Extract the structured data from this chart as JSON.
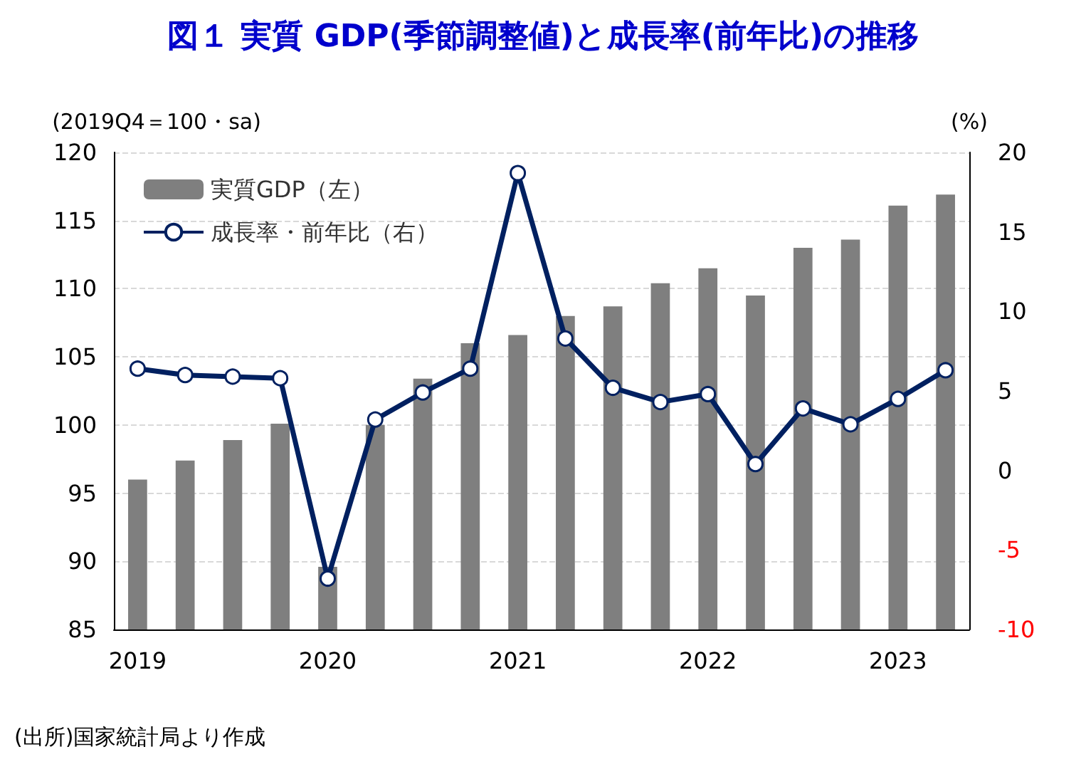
{
  "chart_data": {
    "type": "bar",
    "title": "図１ 実質 GDP(季節調整値)と成長率(前年比)の推移",
    "ylabel": "(2019Q4＝100・sa)",
    "y2label": "(%)",
    "categories": [
      "2019",
      null,
      null,
      null,
      "2020",
      null,
      null,
      null,
      "2021",
      null,
      null,
      null,
      "2022",
      null,
      null,
      null,
      "2023",
      null
    ],
    "series": [
      {
        "name": "実質GDP（左）",
        "color": "#7f7f7f",
        "values": [
          96.0,
          97.4,
          98.9,
          100.1,
          89.6,
          100.0,
          103.4,
          106.0,
          106.6,
          108.0,
          108.7,
          110.4,
          111.5,
          109.5,
          113.0,
          113.6,
          116.1,
          116.9
        ]
      },
      {
        "name": "成長率・前年比（右）",
        "type": "line",
        "axis": "y2",
        "color": "#002060",
        "marker": "circle",
        "values": [
          6.4,
          6.0,
          5.9,
          5.8,
          -6.8,
          3.2,
          4.9,
          6.4,
          18.7,
          8.3,
          5.2,
          4.3,
          4.8,
          0.4,
          3.9,
          2.9,
          4.5,
          6.3
        ]
      }
    ],
    "ylim": [
      85,
      120
    ],
    "yticks": [
      85,
      90,
      95,
      100,
      105,
      110,
      115,
      120
    ],
    "y2lim": [
      -10,
      20
    ],
    "y2ticks": [
      -10,
      -5,
      0,
      5,
      10,
      15,
      20
    ],
    "grid": "y",
    "legend": "top left",
    "annotations": [
      "(出所)国家統計局より作成"
    ]
  }
}
